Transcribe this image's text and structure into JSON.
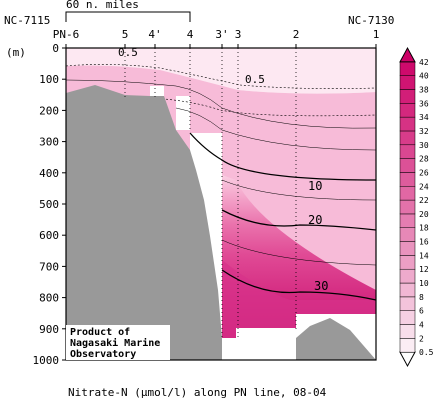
{
  "chart_data": {
    "type": "heatmap",
    "title": "Nitrate-N (µmol/l) along PN line, 08-04",
    "ylabel": "(m)",
    "ylim": [
      0,
      1000
    ],
    "yticks": [
      0,
      100,
      200,
      300,
      400,
      500,
      600,
      700,
      800,
      900,
      1000
    ],
    "scale_bar_label": "60 n. miles",
    "left_station_id": "NC-7115",
    "right_station_id": "NC-7130",
    "stations": [
      "PN-6",
      "5",
      "4'",
      "4",
      "3'",
      "3",
      "2",
      "1"
    ],
    "contour_labels": [
      "0.5",
      "0.5",
      "10",
      "20",
      "30"
    ],
    "credit": [
      "Product of",
      "Nagasaki Marine",
      "Observatory"
    ],
    "colorbar_levels": [
      "0.5",
      "2",
      "4",
      "6",
      "8",
      "10",
      "12",
      "14",
      "16",
      "18",
      "20",
      "22",
      "24",
      "26",
      "28",
      "30",
      "32",
      "34",
      "36",
      "38",
      "40",
      "42"
    ],
    "colors": {
      "low": "#ffffff",
      "high": "#cc0066",
      "bottom": "#999999",
      "frame": "#000000"
    }
  }
}
